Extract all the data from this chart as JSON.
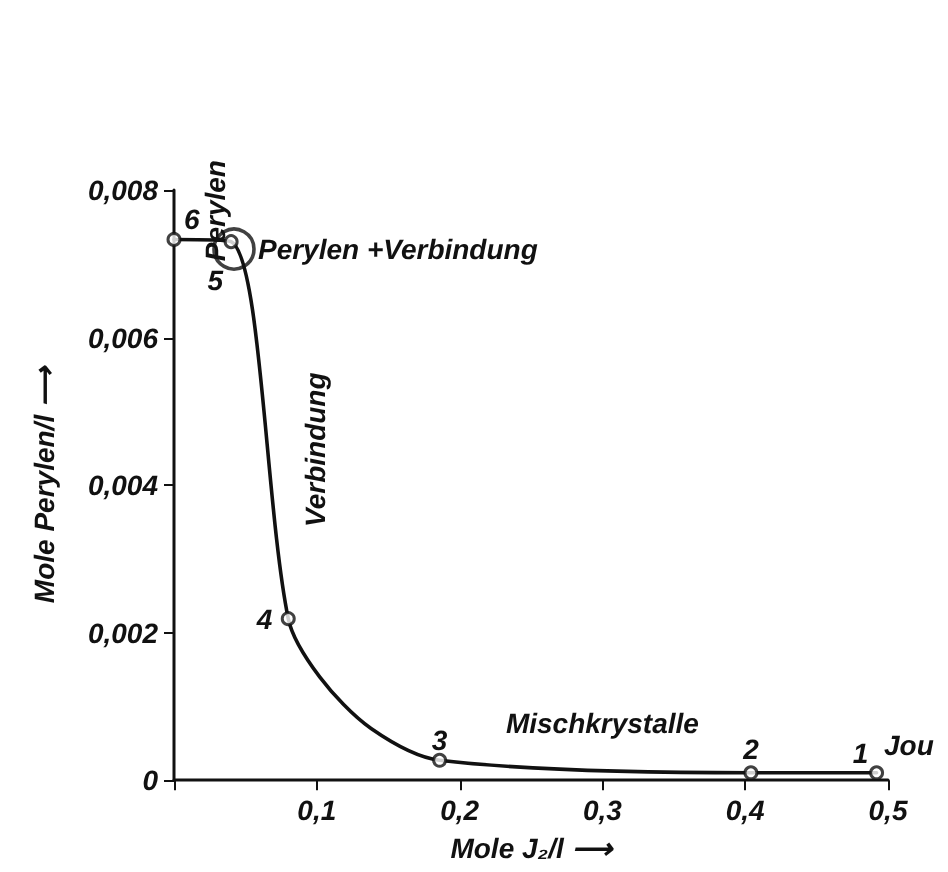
{
  "chart_data": {
    "type": "line",
    "xlabel": "Mole J₂/l ⟶",
    "ylabel": "Mole Perylen/l ⟶",
    "series": [
      {
        "type": "line",
        "color": "#111111",
        "marker": "none",
        "x": [
          0,
          0.04,
          0.08,
          0.102,
          0.138,
          0.186,
          0.404,
          0.492
        ],
        "values": [
          0.00733,
          0.0073,
          0.00219,
          0.0014,
          0.0007,
          0.00027,
          0.0001,
          0.0001
        ]
      },
      {
        "type": "scatter",
        "color": "#111111",
        "marker": "circle",
        "x": [
          0,
          0.04,
          0.08,
          0.186,
          0.404,
          0.492
        ],
        "values": [
          0.00733,
          0.0073,
          0.00219,
          0.00027,
          0.0001,
          0.0001
        ]
      },
      {
        "type": "scatter",
        "color": "#111111",
        "marker": "circle",
        "x": [
          0.042
        ],
        "values": [
          0.0072
        ]
      }
    ],
    "xlim": [
      0,
      0.5
    ],
    "ylim": [
      0,
      0.008
    ],
    "xticks": [
      {
        "value": 0,
        "label": null
      },
      {
        "value": 0.1,
        "label": "0,1"
      },
      {
        "value": 0.2,
        "label": "0,2"
      },
      {
        "value": 0.3,
        "label": "0,3"
      },
      {
        "value": 0.4,
        "label": "0,4"
      },
      {
        "value": 0.5,
        "label": "0,5"
      }
    ],
    "yticks": [
      {
        "value": 0,
        "label": "0"
      },
      {
        "value": 0.002,
        "label": "0,002"
      },
      {
        "value": 0.004,
        "label": "0,004"
      },
      {
        "value": 0.006,
        "label": "0,006"
      },
      {
        "value": 0.008,
        "label": "0,008"
      }
    ],
    "grid": false,
    "annotations": [
      {
        "text": "6",
        "x": 0,
        "y": 0.00733
      },
      {
        "text": "5",
        "x": 0.04,
        "y": 0.0073
      },
      {
        "text": "4",
        "x": 0.08,
        "y": 0.00219
      },
      {
        "text": "3",
        "x": 0.186,
        "y": 0.00027
      },
      {
        "text": "2",
        "x": 0.404,
        "y": 0.0001
      },
      {
        "text": "1",
        "x": 0.492,
        "y": 0.0001
      },
      "Perylen",
      {
        "text": "Perylen +Verbindung",
        "x": 0.042,
        "y": 0.0072
      },
      "Verbindung",
      "Mischkrystalle",
      "Jou"
    ]
  }
}
